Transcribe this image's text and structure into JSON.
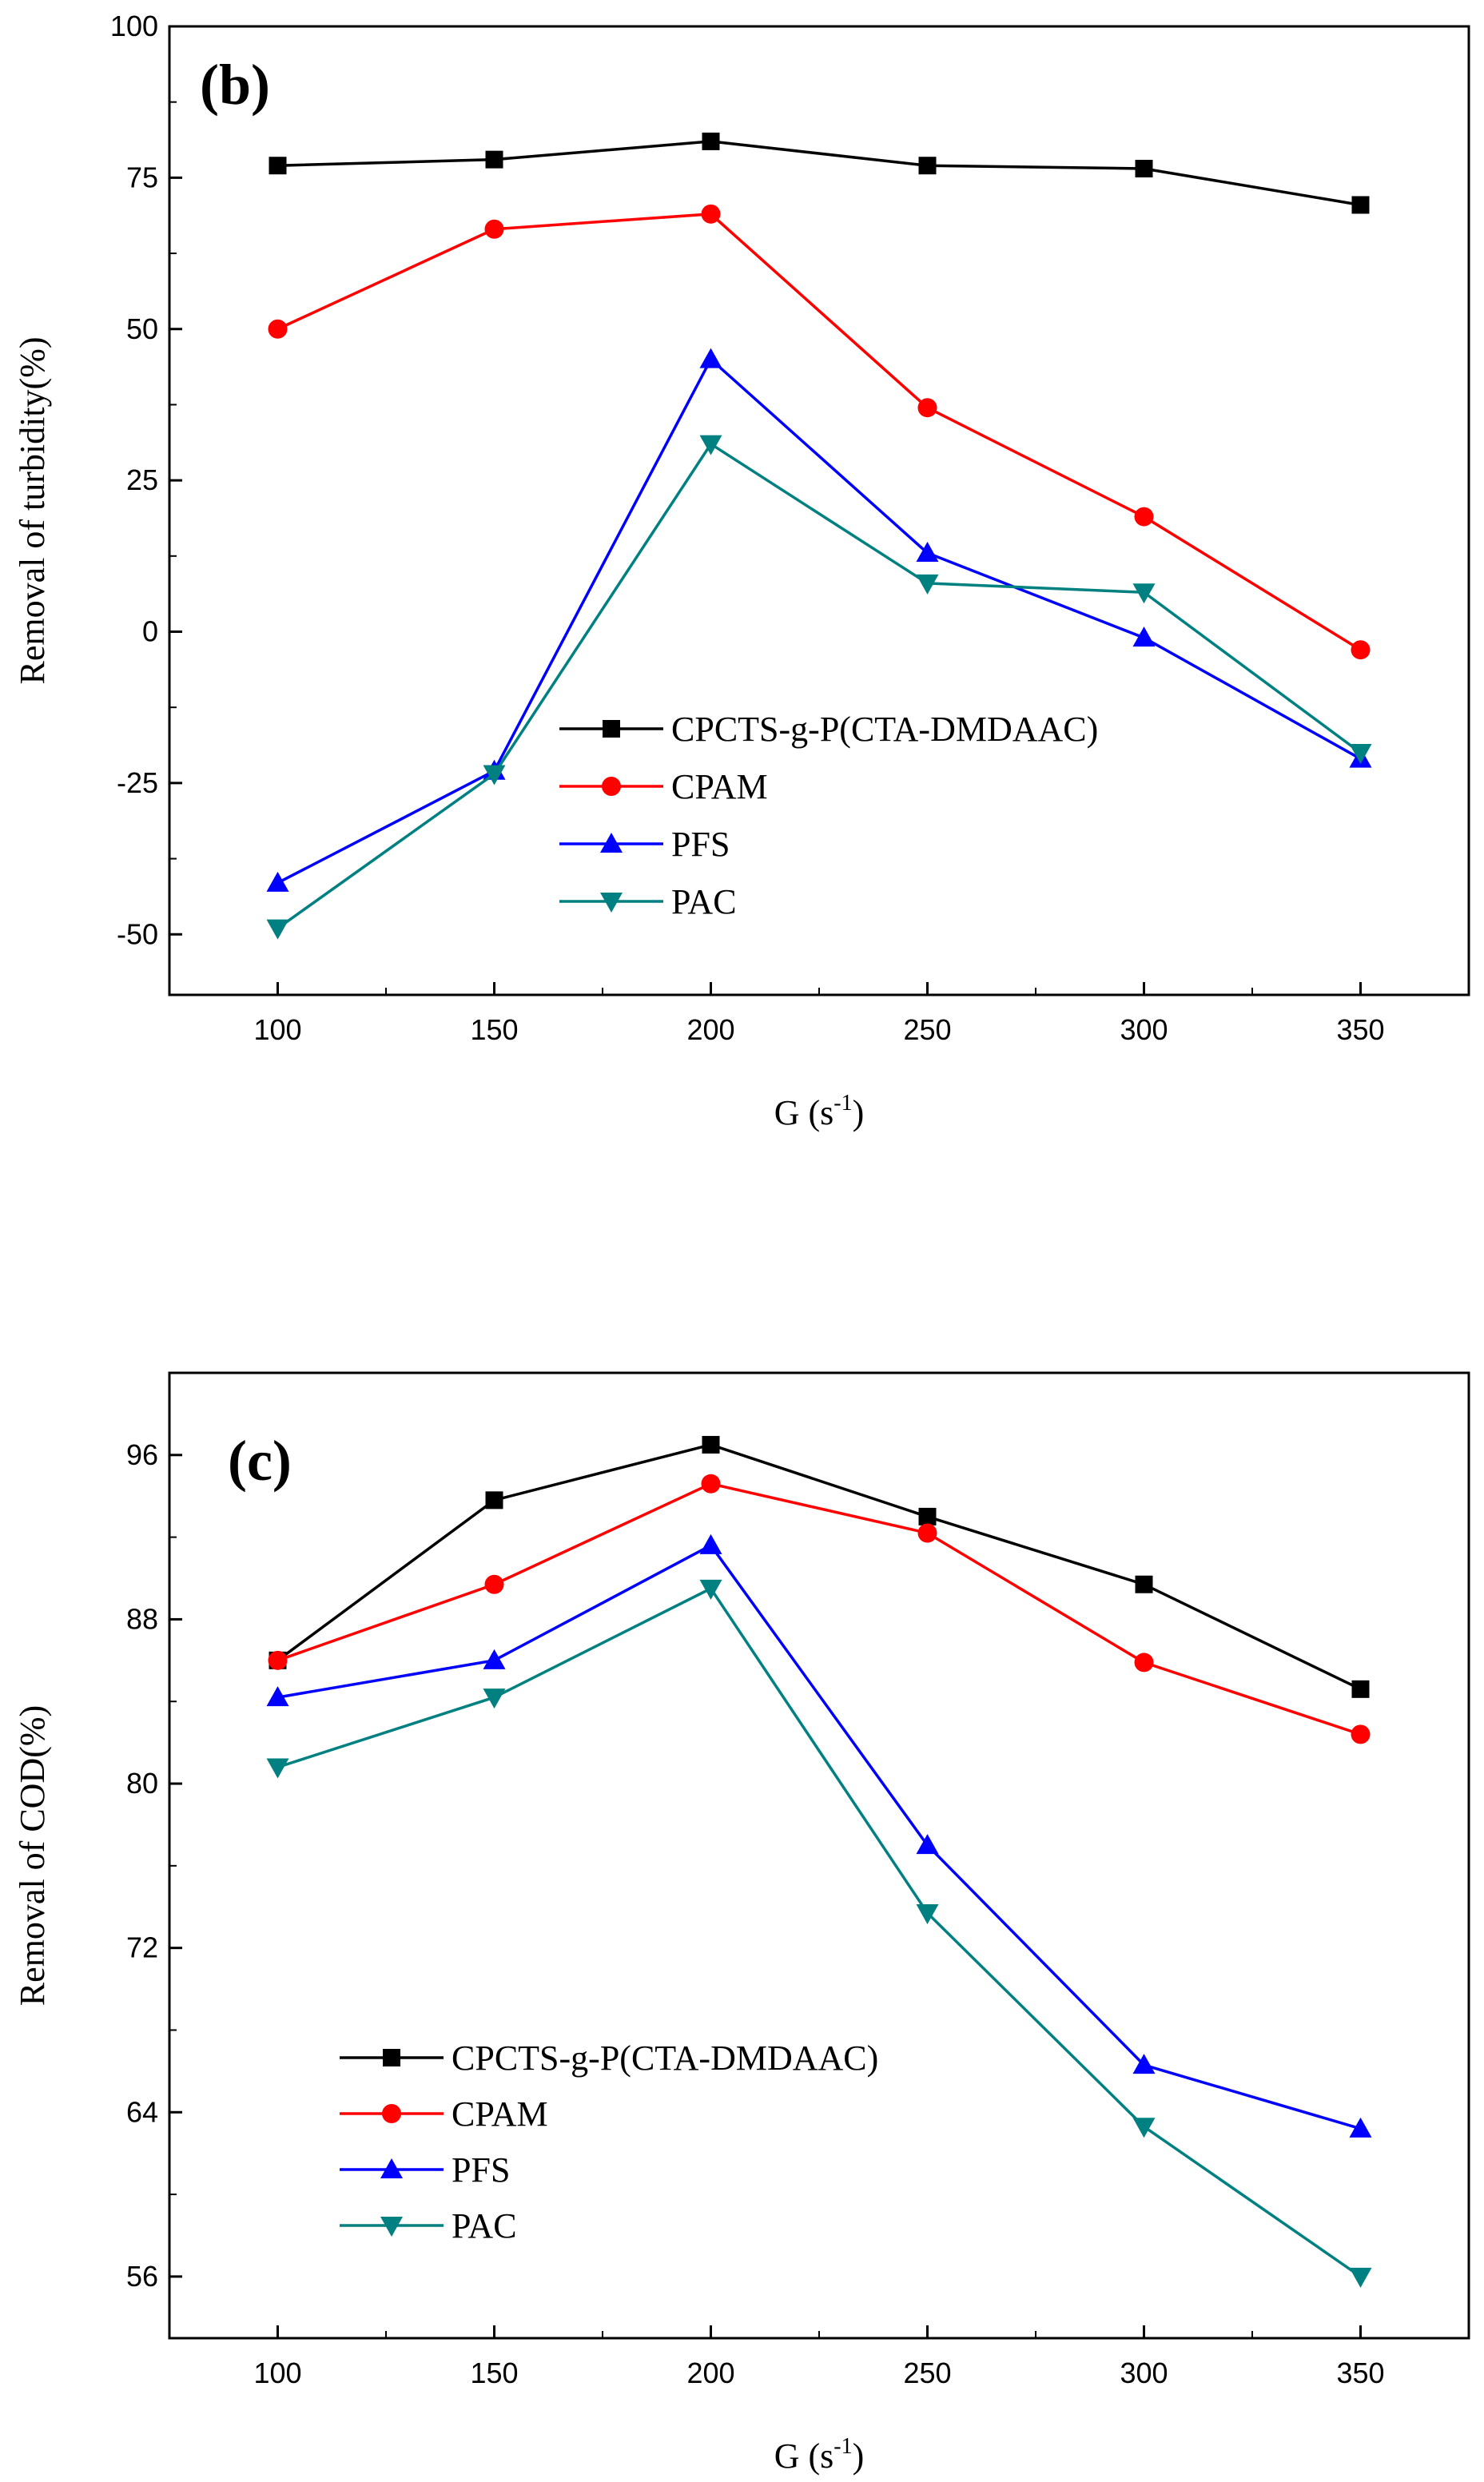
{
  "chart_data": [
    {
      "type": "line",
      "panel_label": "(b)",
      "title": "",
      "xlabel": "G (s",
      "xlabel_sup": "-1",
      "xlabel_close": ")",
      "ylabel": "Removal of turbidity(%)",
      "x": [
        100,
        150,
        200,
        250,
        300,
        350
      ],
      "xlim": [
        75,
        375
      ],
      "ylim": [
        -60,
        100
      ],
      "xticks": [
        "100",
        "150",
        "200",
        "250",
        "300",
        "350"
      ],
      "yticks": [
        "-50",
        "-25",
        "0",
        "25",
        "50",
        "75",
        "100"
      ],
      "ytick_values": [
        -50,
        -25,
        0,
        25,
        50,
        75,
        100
      ],
      "legend_position": "center-left",
      "series": [
        {
          "name": "CPCTS-g-P(CTA-DMDAAC)",
          "marker": "square",
          "color": "#000000",
          "values": [
            77,
            78,
            81,
            77,
            76.5,
            70.5
          ]
        },
        {
          "name": "CPAM",
          "marker": "circle",
          "color": "#ff0000",
          "values": [
            50,
            66.5,
            69,
            37,
            19,
            -3
          ]
        },
        {
          "name": "PFS",
          "marker": "triangle-up",
          "color": "#0000ff",
          "values": [
            -41.5,
            -23,
            45,
            13,
            -1,
            -21
          ]
        },
        {
          "name": "PAC",
          "marker": "triangle-down",
          "color": "#008080",
          "values": [
            -49,
            -23.5,
            31,
            8,
            6.5,
            -20
          ]
        }
      ]
    },
    {
      "type": "line",
      "panel_label": "(c)",
      "title": "",
      "xlabel": "G (s",
      "xlabel_sup": "-1",
      "xlabel_close": ")",
      "ylabel": "Removal of COD(%)",
      "x": [
        100,
        150,
        200,
        250,
        300,
        350
      ],
      "xlim": [
        75,
        375
      ],
      "ylim": [
        53,
        100
      ],
      "xticks": [
        "100",
        "150",
        "200",
        "250",
        "300",
        "350"
      ],
      "yticks": [
        "56",
        "64",
        "72",
        "80",
        "88",
        "96"
      ],
      "ytick_values": [
        56,
        64,
        72,
        80,
        88,
        96
      ],
      "legend_position": "bottom-left",
      "series": [
        {
          "name": "CPCTS-g-P(CTA-DMDAAC)",
          "marker": "square",
          "color": "#000000",
          "values": [
            86,
            93.8,
            96.5,
            93,
            89.7,
            84.6
          ]
        },
        {
          "name": "CPAM",
          "marker": "circle",
          "color": "#ff0000",
          "values": [
            86,
            89.7,
            94.6,
            92.2,
            85.9,
            82.4
          ]
        },
        {
          "name": "PFS",
          "marker": "triangle-up",
          "color": "#0000ff",
          "values": [
            84.2,
            86,
            91.6,
            77,
            66.3,
            63.2
          ]
        },
        {
          "name": "PAC",
          "marker": "triangle-down",
          "color": "#008080",
          "values": [
            80.8,
            84.2,
            89.5,
            73.7,
            63.3,
            56
          ]
        }
      ]
    }
  ]
}
